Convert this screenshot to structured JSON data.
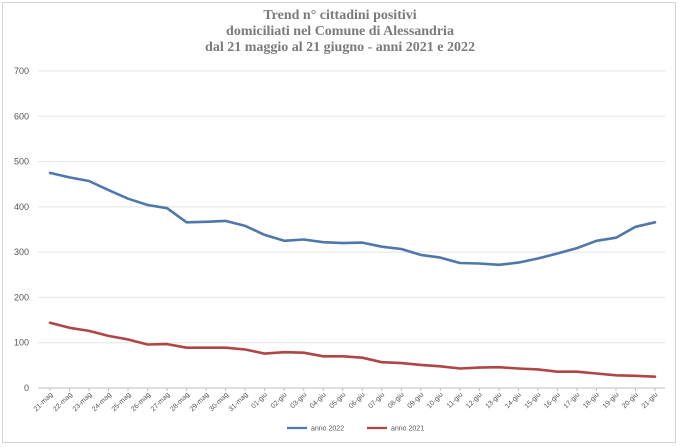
{
  "chart_data": {
    "type": "line",
    "title_lines": [
      "Trend n° cittadini positivi",
      "domiciliati nel Comune di Alessandria",
      "dal 21 maggio al 21 giugno - anni 2021 e 2022"
    ],
    "xlabel": "",
    "ylabel": "",
    "ylim": [
      0,
      700
    ],
    "yticks": [
      0,
      100,
      200,
      300,
      400,
      500,
      600,
      700
    ],
    "grid": true,
    "legend_position": "bottom",
    "categories": [
      "21-mag",
      "22-mag",
      "23-mag",
      "24-mag",
      "25-mag",
      "26-mag",
      "27-mag",
      "28-mag",
      "29-mag",
      "30-mag",
      "31-mag",
      "01-giu",
      "02-giu",
      "03-giu",
      "04-giu",
      "05-giu",
      "06-giu",
      "07-giu",
      "08-giu",
      "09-giu",
      "10-giu",
      "11-giu",
      "12-giu",
      "13-giu",
      "14-giu",
      "15-giu",
      "16-giu",
      "17-giu",
      "18-giu",
      "19-giu",
      "20-giu",
      "21-giu"
    ],
    "series": [
      {
        "name": "anno 2022",
        "color": "#4f77aa",
        "values": [
          475,
          465,
          457,
          437,
          418,
          404,
          397,
          366,
          367,
          369,
          358,
          338,
          325,
          328,
          322,
          320,
          321,
          312,
          307,
          294,
          288,
          276,
          275,
          272,
          277,
          286,
          297,
          309,
          325,
          332,
          356,
          366
        ]
      },
      {
        "name": "anno 2021",
        "color": "#b04545",
        "values": [
          144,
          133,
          126,
          115,
          107,
          96,
          97,
          89,
          89,
          89,
          85,
          76,
          79,
          78,
          70,
          70,
          67,
          57,
          55,
          51,
          48,
          43,
          45,
          46,
          43,
          41,
          36,
          36,
          32,
          28,
          27,
          25
        ]
      }
    ]
  }
}
